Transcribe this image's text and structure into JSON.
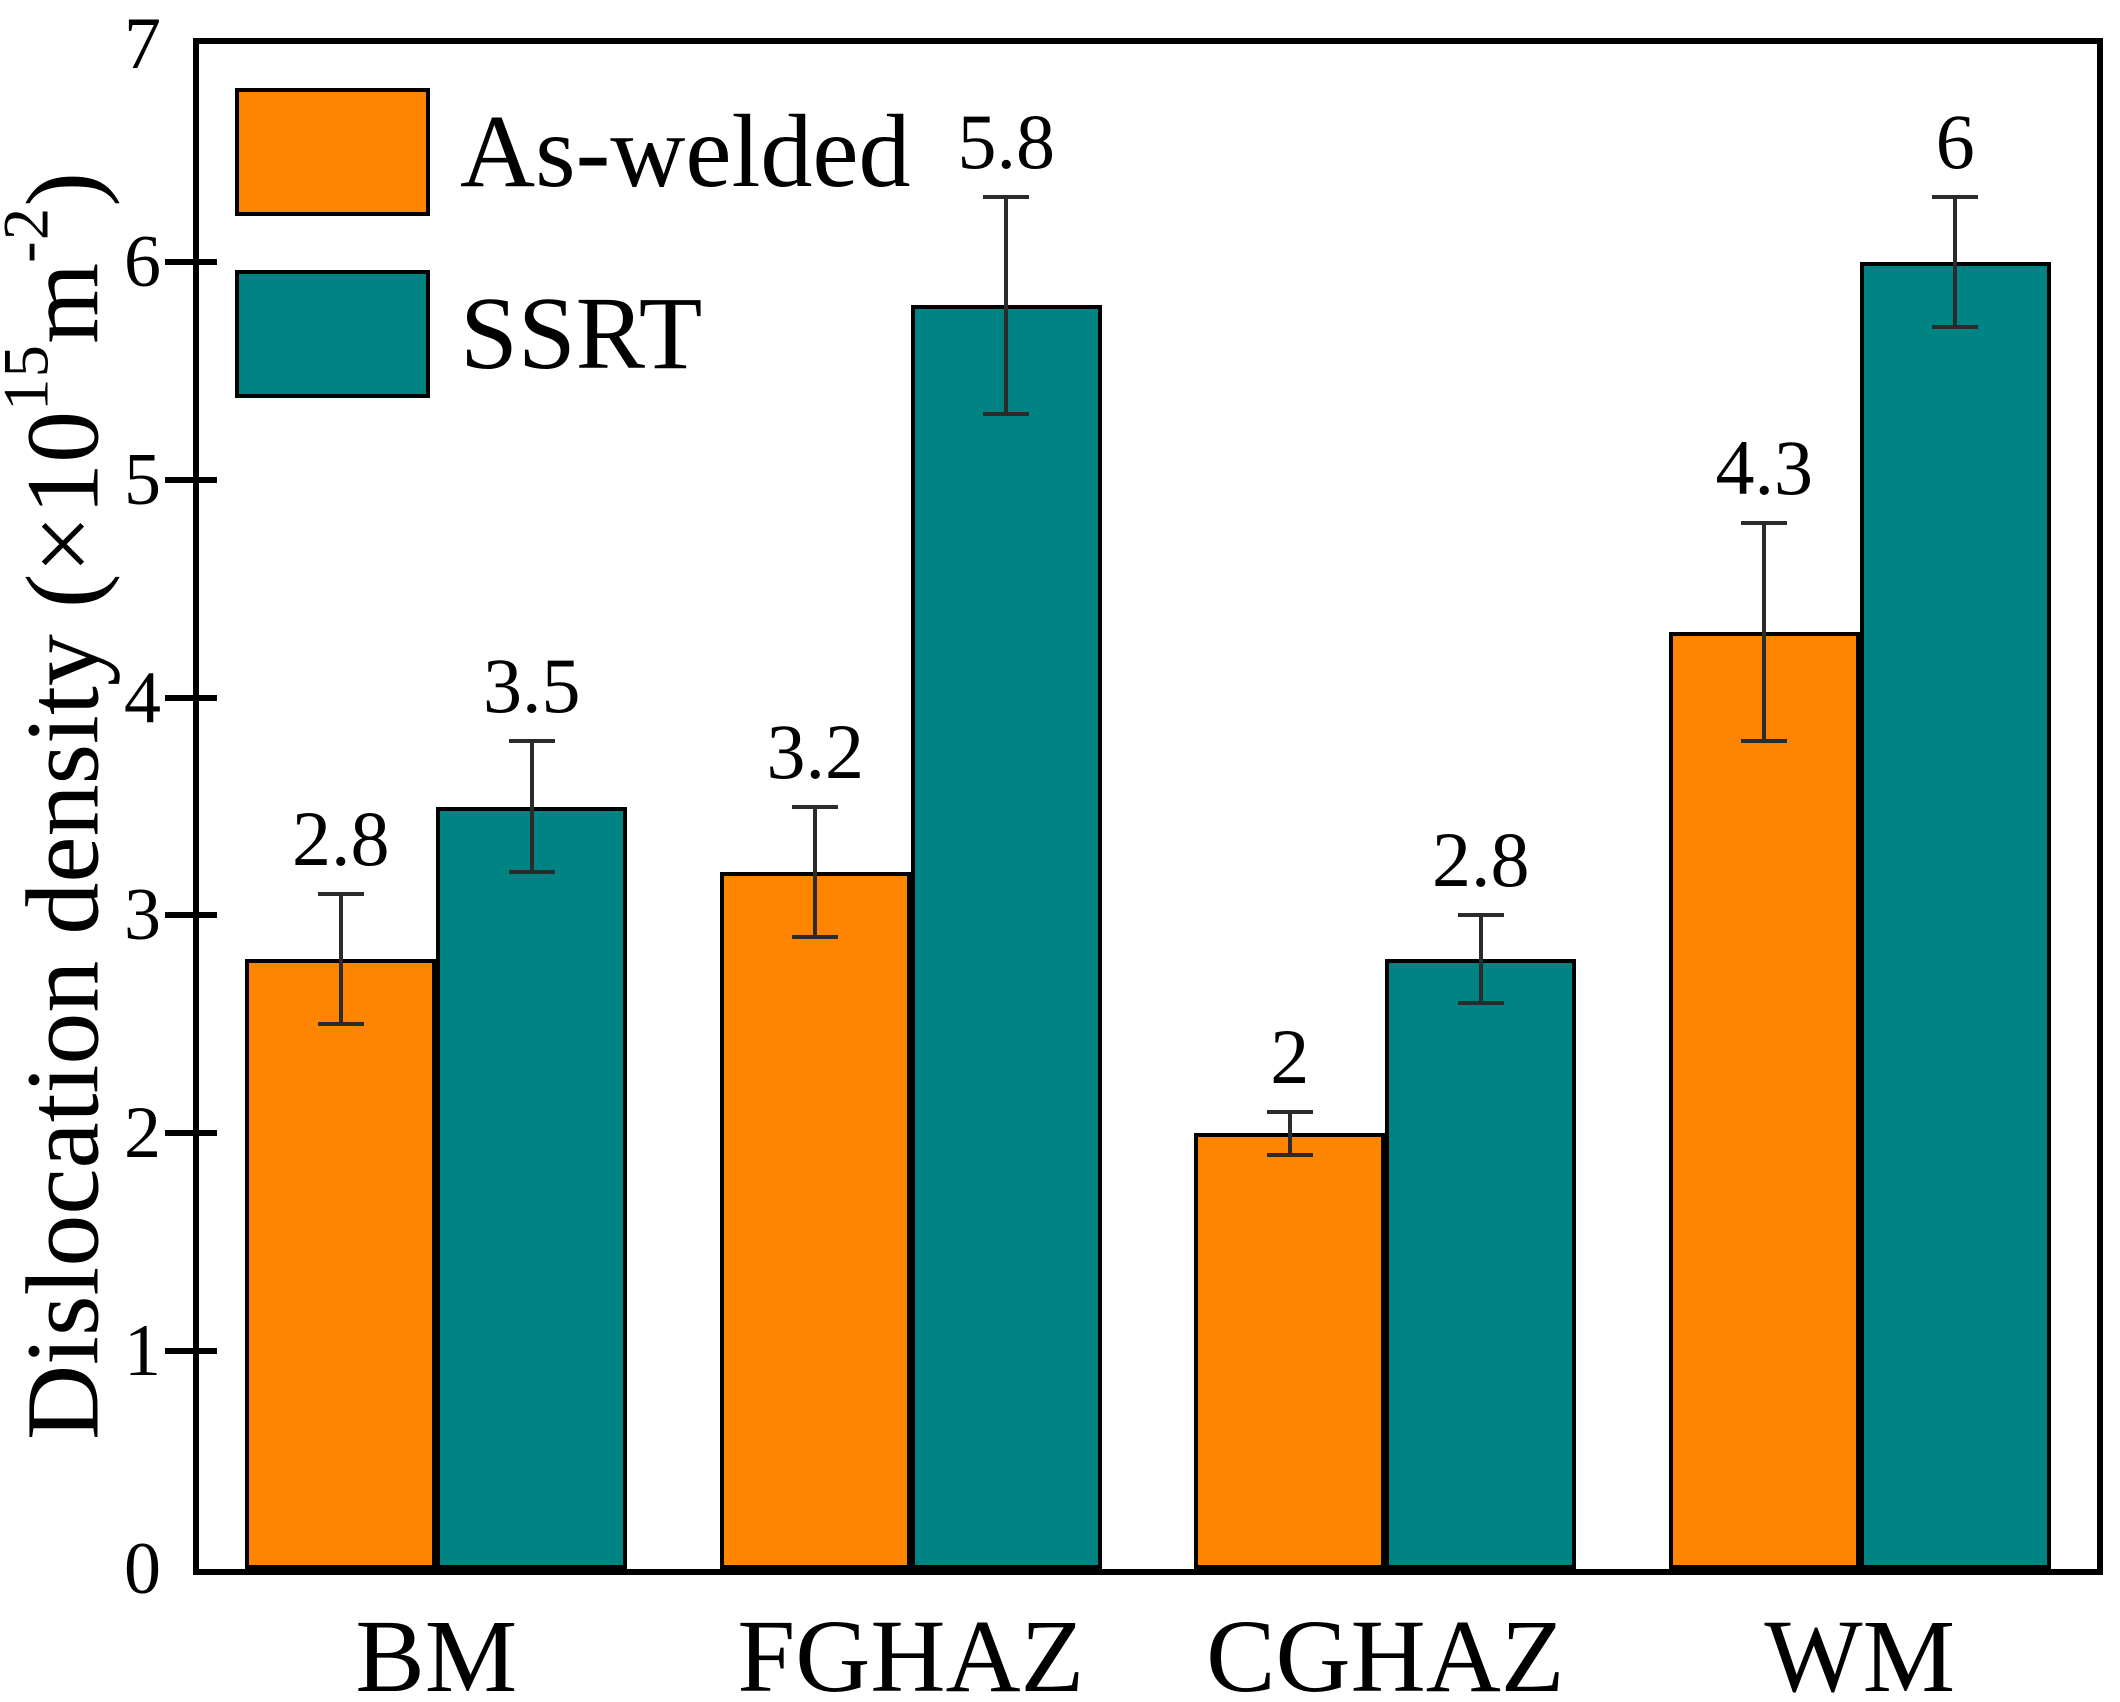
{
  "yaxis": {
    "label_prefix": "Dislocation density (×10",
    "label_sup1": "15",
    "label_mid": "m",
    "label_sup2": "-2",
    "label_suffix": ")"
  },
  "chart_data": {
    "type": "bar",
    "title": "",
    "categories": [
      "BM",
      "FGHAZ",
      "CGHAZ",
      "WM"
    ],
    "series": [
      {
        "name": "As-welded",
        "color": "#FF8400",
        "values": [
          2.8,
          3.2,
          2,
          4.3
        ],
        "errors": [
          0.3,
          0.3,
          0.1,
          0.5
        ],
        "labels": [
          "2.8",
          "3.2",
          "2",
          "4.3"
        ]
      },
      {
        "name": "SSRT",
        "color": "#008383",
        "values": [
          3.5,
          5.8,
          2.8,
          6
        ],
        "errors": [
          0.3,
          0.5,
          0.2,
          0.3
        ],
        "labels": [
          "3.5",
          "5.8",
          "2.8",
          "6"
        ]
      }
    ],
    "ylabel": "Dislocation density (×10^15 m^-2)",
    "xlabel": "",
    "ylim": [
      0,
      7
    ],
    "yticks": [
      0,
      1,
      2,
      3,
      4,
      5,
      6,
      7
    ],
    "grid": false,
    "legend_position": "upper-left",
    "bar_edge_color": "#000000",
    "error_bar_color": "#2b2b2b"
  }
}
